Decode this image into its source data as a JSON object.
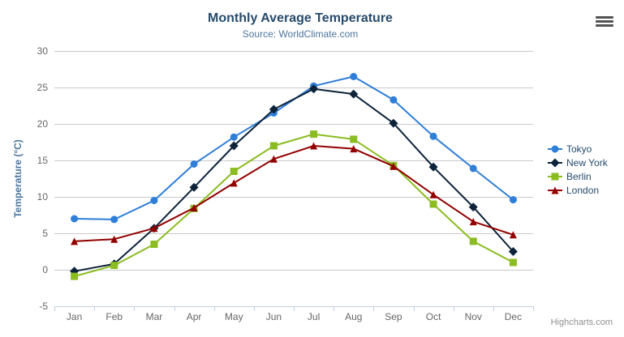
{
  "credits": "Highcharts.com",
  "colors": {
    "title": "#274b6d",
    "subtitle": "#4d759e",
    "axis_title": "#4d759e",
    "axis_labels": "#666666",
    "legend_text": "#274b6d",
    "gridline": "#c9c9c9",
    "axis_line": "#c0d0e0",
    "credits": "#909090",
    "menu_icon": "#545454"
  },
  "chart_data": {
    "type": "line",
    "title": "Monthly Average Temperature",
    "subtitle": "Source: WorldClimate.com",
    "categories": [
      "Jan",
      "Feb",
      "Mar",
      "Apr",
      "May",
      "Jun",
      "Jul",
      "Aug",
      "Sep",
      "Oct",
      "Nov",
      "Dec"
    ],
    "series": [
      {
        "name": "Tokyo",
        "color": "#2f7ed8",
        "marker": "circle",
        "values": [
          7.0,
          6.9,
          9.5,
          14.5,
          18.2,
          21.5,
          25.2,
          26.5,
          23.3,
          18.3,
          13.9,
          9.6
        ]
      },
      {
        "name": "New York",
        "color": "#0d233a",
        "marker": "diamond",
        "values": [
          -0.2,
          0.8,
          5.7,
          11.3,
          17.0,
          22.0,
          24.8,
          24.1,
          20.1,
          14.1,
          8.6,
          2.5
        ]
      },
      {
        "name": "Berlin",
        "color": "#8bbc21",
        "marker": "square",
        "values": [
          -0.9,
          0.6,
          3.5,
          8.4,
          13.5,
          17.0,
          18.6,
          17.9,
          14.3,
          9.0,
          3.9,
          1.0
        ]
      },
      {
        "name": "London",
        "color": "#910000",
        "marker": "triangle",
        "values": [
          3.9,
          4.2,
          5.7,
          8.5,
          11.9,
          15.2,
          17.0,
          16.6,
          14.2,
          10.3,
          6.6,
          4.8
        ]
      }
    ],
    "xlabel": "",
    "ylabel": "Temperature (°C)",
    "ylim": [
      -5,
      30
    ],
    "yticks": [
      -5,
      0,
      5,
      10,
      15,
      20,
      25,
      30
    ],
    "grid": "horizontal",
    "legend_position": "right"
  }
}
